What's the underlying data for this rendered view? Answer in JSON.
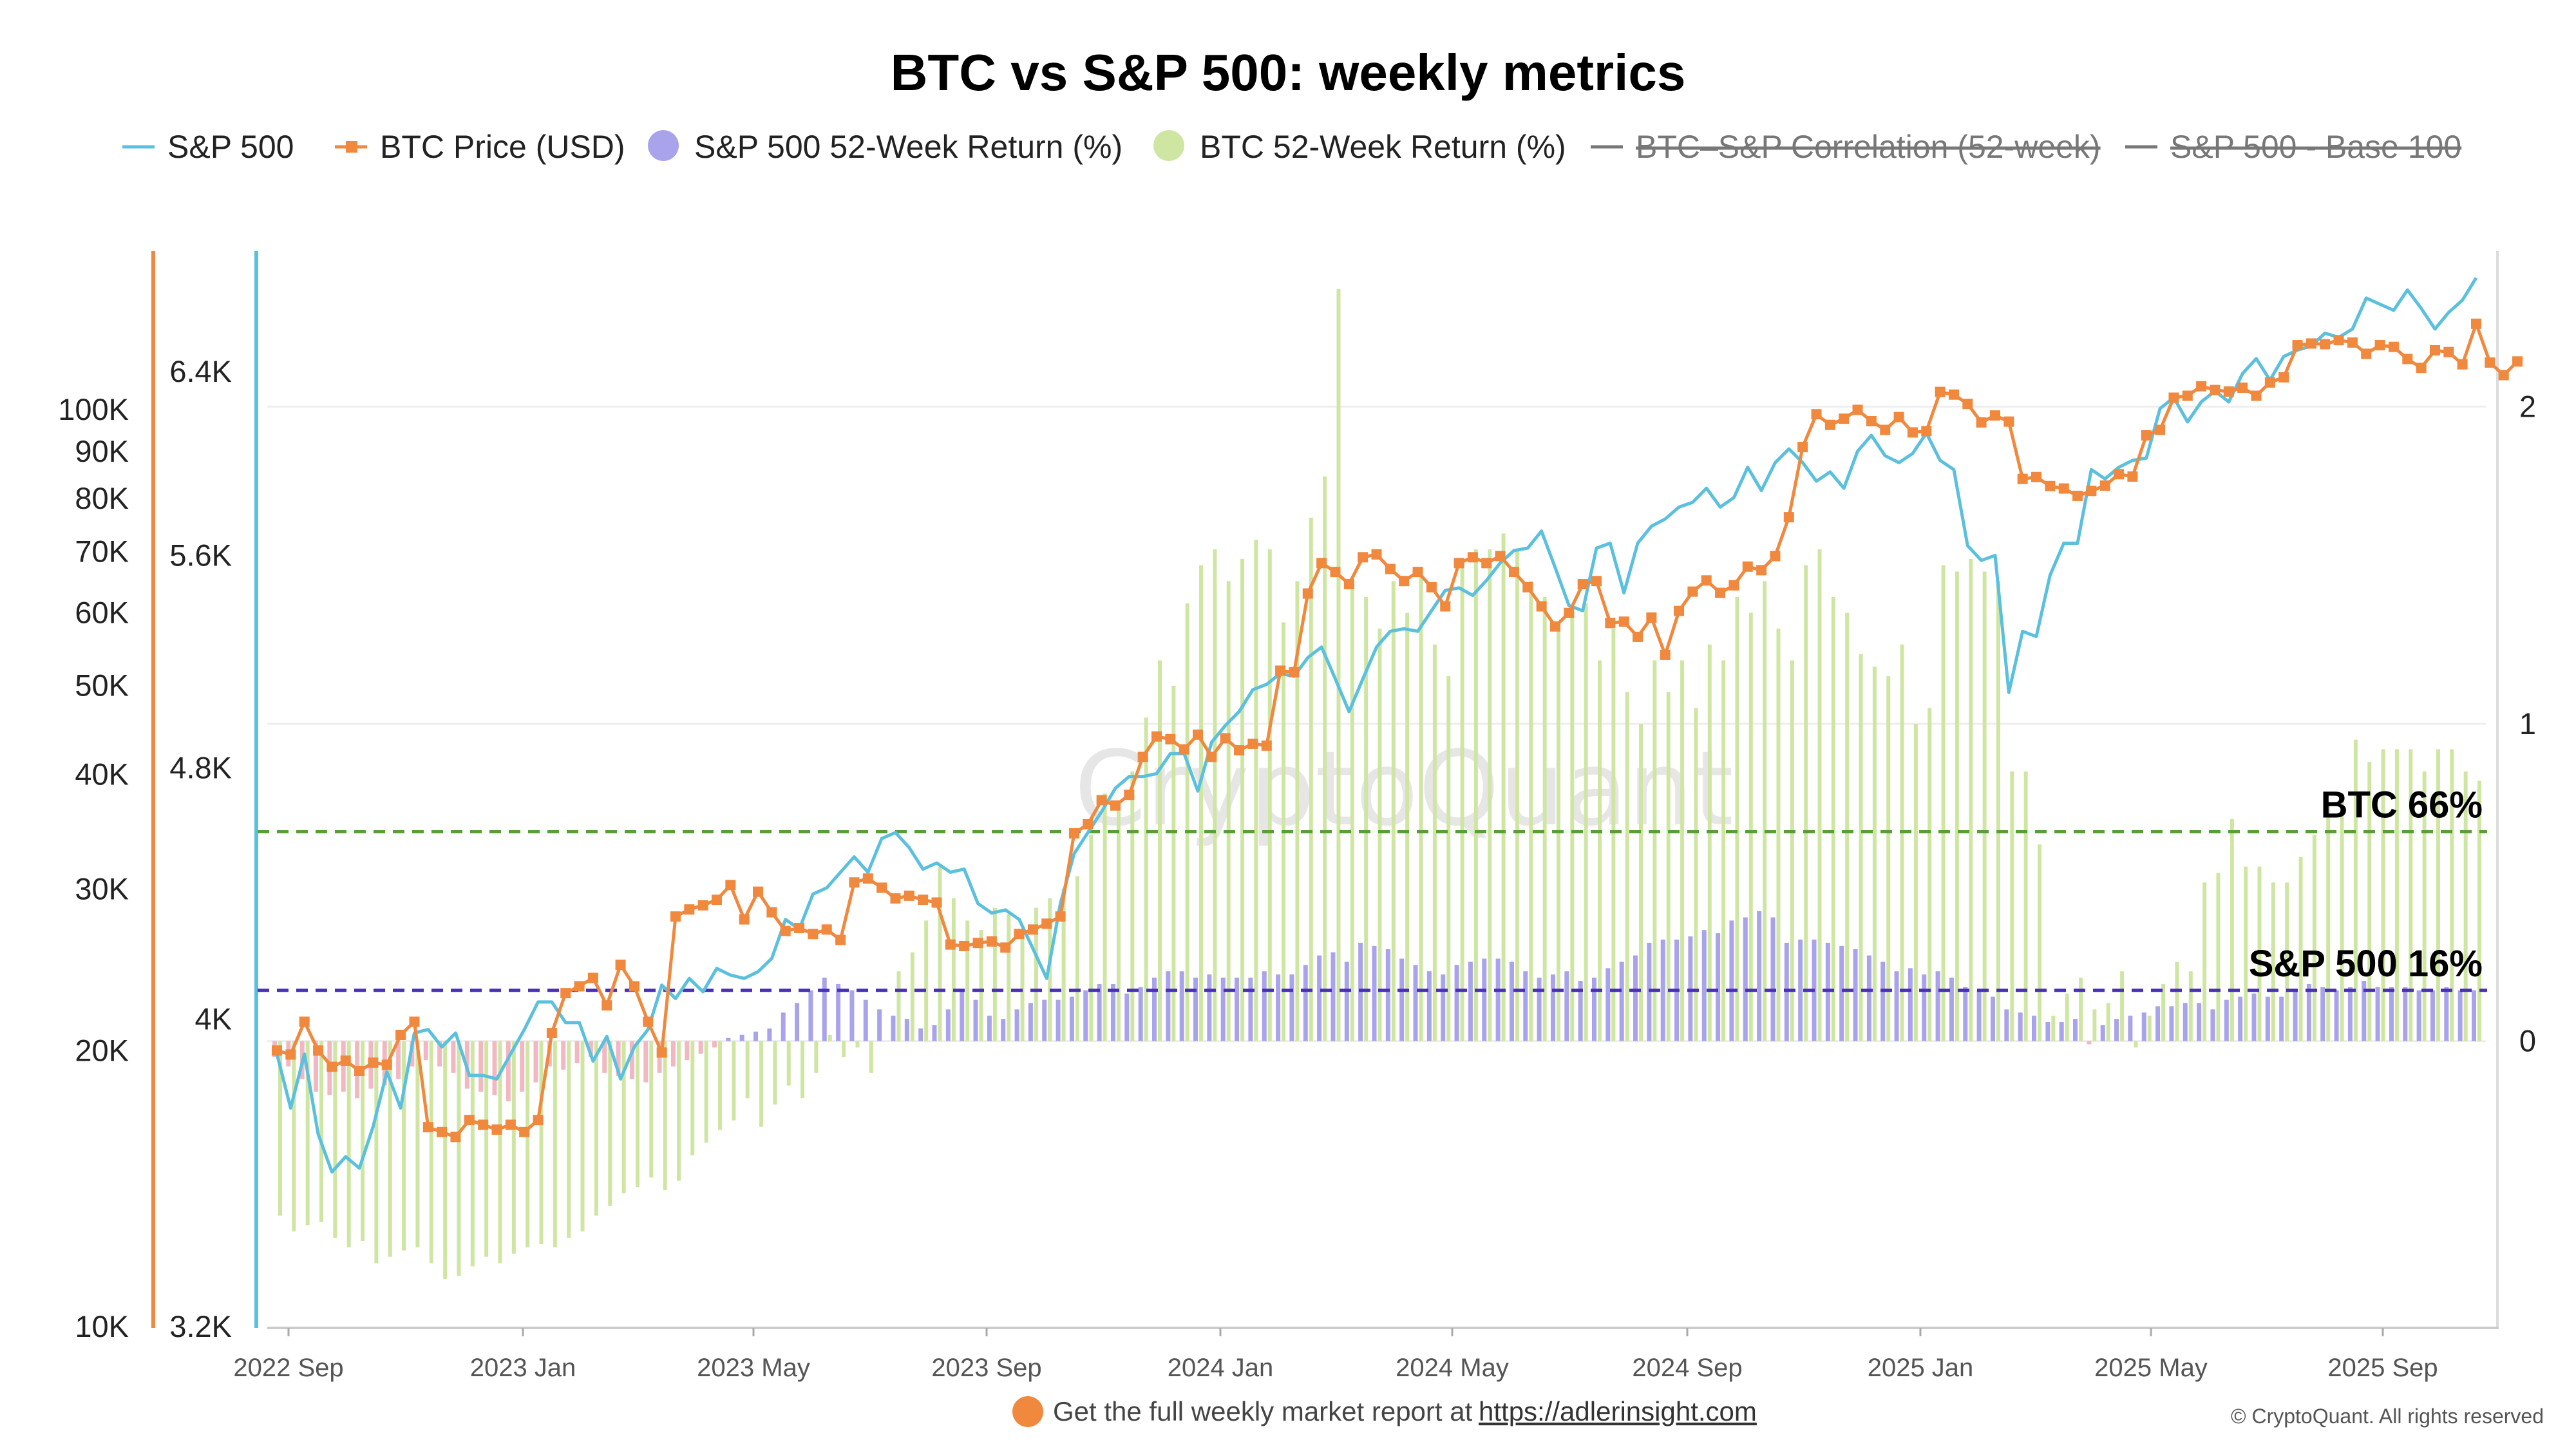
{
  "chart_data": {
    "type": "line",
    "title": "BTC vs S&P 500: weekly metrics",
    "legend": {
      "placement": "top",
      "items": [
        {
          "label": "S&P 500",
          "color": "#5bc0de",
          "marker": "line",
          "active": true
        },
        {
          "label": "BTC Price (USD)",
          "color": "#f0883e",
          "marker": "square-line",
          "active": true
        },
        {
          "label": "S&P 500 52-Week Return (%)",
          "color": "#a9a3ec",
          "marker": "dot",
          "active": true
        },
        {
          "label": "BTC 52-Week Return (%)",
          "color": "#cfe6a3",
          "marker": "dot",
          "active": true
        },
        {
          "label": "BTC–S&P Correlation (52-week)",
          "color": "#777777",
          "marker": "line",
          "active": false
        },
        {
          "label": "S&P 500 - Base 100",
          "color": "#777777",
          "marker": "line",
          "active": false
        }
      ]
    },
    "x_ticks": [
      "2022 Sep",
      "2023 Jan",
      "2023 May",
      "2023 Sep",
      "2024 Jan",
      "2024 May",
      "2024 Sep",
      "2025 Jan",
      "2025 May",
      "2025 Sep"
    ],
    "y_axes": {
      "btc_price": {
        "scale": "log",
        "ticks": [
          "100K",
          "90K",
          "80K",
          "70K",
          "60K",
          "50K",
          "40K",
          "30K",
          "20K",
          "10K"
        ],
        "tick_values": [
          100000,
          90000,
          80000,
          70000,
          60000,
          50000,
          40000,
          30000,
          20000,
          10000
        ],
        "range": [
          10000,
          150000
        ]
      },
      "sp500": {
        "scale": "log",
        "ticks": [
          "6.4K",
          "5.6K",
          "4.8K",
          "4K",
          "3.2K"
        ],
        "tick_values": [
          6400,
          5600,
          4800,
          4000,
          3200
        ],
        "range": [
          3200,
          7000
        ]
      },
      "returns_right": {
        "scale": "linear",
        "ticks": [
          "2",
          "1",
          "0"
        ],
        "tick_values": [
          2,
          1,
          0
        ],
        "range": [
          -0.9,
          2.5
        ]
      }
    },
    "grid": true,
    "series": [
      {
        "name": "S&P 500",
        "axis": "sp500",
        "values": [
          3900,
          3750,
          3900,
          3680,
          3580,
          3620,
          3590,
          3700,
          3850,
          3750,
          3960,
          3970,
          3920,
          3960,
          3840,
          3840,
          3830,
          3900,
          3970,
          4050,
          4050,
          3990,
          3990,
          3880,
          3950,
          3830,
          3920,
          3970,
          4100,
          4060,
          4120,
          4080,
          4150,
          4130,
          4120,
          4140,
          4180,
          4300,
          4270,
          4380,
          4400,
          4450,
          4500,
          4450,
          4560,
          4580,
          4530,
          4460,
          4480,
          4450,
          4460,
          4350,
          4320,
          4330,
          4300,
          4210,
          4120,
          4350,
          4510,
          4580,
          4650,
          4730,
          4770,
          4770,
          4780,
          4850,
          4850,
          4720,
          4890,
          4950,
          5000,
          5080,
          5100,
          5140,
          5130,
          5200,
          5240,
          5120,
          5000,
          5120,
          5240,
          5300,
          5310,
          5300,
          5380,
          5460,
          5470,
          5440,
          5500,
          5570,
          5620,
          5630,
          5700,
          5550,
          5400,
          5380,
          5630,
          5650,
          5450,
          5650,
          5720,
          5750,
          5800,
          5820,
          5880,
          5800,
          5840,
          5970,
          5870,
          5990,
          6050,
          5990,
          5910,
          5950,
          5880,
          6040,
          6110,
          6020,
          5990,
          6030,
          6120,
          6000,
          5960,
          5640,
          5580,
          5600,
          5070,
          5300,
          5280,
          5520,
          5650,
          5650,
          5960,
          5920,
          5970,
          6000,
          6010,
          6230,
          6280,
          6170,
          6260,
          6310,
          6260,
          6390,
          6460,
          6360,
          6470,
          6500,
          6520,
          6580,
          6560,
          6600,
          6750,
          6720,
          6690,
          6790,
          6700,
          6600,
          6680,
          6740,
          6850
        ]
      },
      {
        "name": "BTC Price (USD)",
        "axis": "btc_price",
        "values": [
          20000,
          19800,
          21500,
          20000,
          19200,
          19500,
          19000,
          19400,
          19300,
          20800,
          21500,
          16500,
          16300,
          16100,
          16800,
          16600,
          16400,
          16600,
          16300,
          16800,
          20900,
          23100,
          23500,
          24000,
          22400,
          24800,
          23500,
          21500,
          19900,
          28000,
          28500,
          28800,
          29200,
          30300,
          27800,
          29800,
          28300,
          27000,
          27200,
          26800,
          27100,
          26400,
          30500,
          30800,
          30100,
          29300,
          29500,
          29200,
          29000,
          26100,
          26000,
          26200,
          26300,
          25900,
          26800,
          27100,
          27500,
          28000,
          34500,
          35300,
          37500,
          37000,
          38000,
          41800,
          44000,
          43700,
          42600,
          44200,
          41800,
          43800,
          42500,
          43200,
          43000,
          51900,
          51700,
          63000,
          68000,
          66500,
          64500,
          69000,
          69500,
          67000,
          65000,
          66500,
          64000,
          61000,
          68000,
          69000,
          68000,
          69200,
          66500,
          64000,
          61000,
          58000,
          60000,
          64500,
          65000,
          58500,
          58700,
          56500,
          59300,
          54000,
          60300,
          63300,
          65100,
          63100,
          64300,
          67400,
          66800,
          69200,
          76300,
          91000,
          98800,
          96200,
          97700,
          99900,
          97100,
          95000,
          98100,
          94400,
          94700,
          104500,
          103800,
          101400,
          96800,
          98500,
          97000,
          84000,
          84400,
          82500,
          82000,
          80500,
          81500,
          82600,
          85000,
          84500,
          93700,
          95000,
          103000,
          103500,
          106000,
          105000,
          104600,
          105600,
          103500,
          107000,
          108400,
          117500,
          118000,
          117800,
          119000,
          118300,
          115000,
          117500,
          117000,
          113500,
          111000,
          116000,
          115500,
          112000,
          124000,
          112500,
          109000,
          112800
        ]
      },
      {
        "name": "S&P 500 52-Week Return (%)",
        "axis": "returns_right",
        "values": [
          -0.05,
          -0.08,
          -0.12,
          -0.16,
          -0.17,
          -0.16,
          -0.18,
          -0.15,
          -0.14,
          -0.12,
          -0.08,
          -0.06,
          -0.08,
          -0.1,
          -0.15,
          -0.16,
          -0.17,
          -0.19,
          -0.16,
          -0.13,
          -0.08,
          -0.09,
          -0.07,
          -0.05,
          -0.1,
          -0.11,
          -0.12,
          -0.13,
          -0.1,
          -0.08,
          -0.06,
          -0.04,
          -0.02,
          0.01,
          0.02,
          0.03,
          0.04,
          0.09,
          0.12,
          0.16,
          0.2,
          0.18,
          0.16,
          0.13,
          0.1,
          0.08,
          0.07,
          0.04,
          0.05,
          0.1,
          0.16,
          0.13,
          0.08,
          0.07,
          0.1,
          0.12,
          0.13,
          0.13,
          0.14,
          0.16,
          0.18,
          0.18,
          0.15,
          0.17,
          0.2,
          0.22,
          0.22,
          0.2,
          0.21,
          0.2,
          0.2,
          0.2,
          0.22,
          0.21,
          0.21,
          0.24,
          0.27,
          0.28,
          0.25,
          0.31,
          0.3,
          0.29,
          0.26,
          0.24,
          0.22,
          0.21,
          0.24,
          0.25,
          0.26,
          0.26,
          0.25,
          0.22,
          0.2,
          0.21,
          0.22,
          0.19,
          0.2,
          0.23,
          0.25,
          0.27,
          0.31,
          0.32,
          0.32,
          0.33,
          0.35,
          0.34,
          0.38,
          0.39,
          0.41,
          0.39,
          0.31,
          0.32,
          0.32,
          0.31,
          0.3,
          0.29,
          0.27,
          0.25,
          0.22,
          0.23,
          0.21,
          0.22,
          0.2,
          0.17,
          0.16,
          0.14,
          0.1,
          0.09,
          0.08,
          0.06,
          0.06,
          0.07,
          -0.01,
          0.05,
          0.07,
          0.08,
          0.09,
          0.11,
          0.11,
          0.12,
          0.12,
          0.1,
          0.13,
          0.14,
          0.15,
          0.14,
          0.14,
          0.16,
          0.18,
          0.17,
          0.16,
          0.17,
          0.19,
          0.17,
          0.17,
          0.17,
          0.16,
          0.16,
          0.17,
          0.16,
          0.16,
          0.17,
          0.16
        ]
      },
      {
        "name": "BTC 52-Week Return (%)",
        "axis": "returns_right",
        "values": [
          -0.55,
          -0.6,
          -0.58,
          -0.57,
          -0.62,
          -0.65,
          -0.63,
          -0.7,
          -0.68,
          -0.66,
          -0.65,
          -0.7,
          -0.75,
          -0.74,
          -0.71,
          -0.68,
          -0.7,
          -0.67,
          -0.65,
          -0.64,
          -0.65,
          -0.62,
          -0.6,
          -0.55,
          -0.52,
          -0.48,
          -0.46,
          -0.43,
          -0.47,
          -0.44,
          -0.36,
          -0.32,
          -0.28,
          -0.25,
          -0.18,
          -0.27,
          -0.2,
          -0.14,
          -0.18,
          -0.1,
          0.02,
          -0.05,
          -0.02,
          -0.1,
          0.0,
          0.22,
          0.28,
          0.38,
          0.55,
          0.45,
          0.38,
          0.35,
          0.42,
          0.4,
          0.35,
          0.42,
          0.45,
          0.48,
          0.52,
          0.65,
          0.78,
          0.75,
          0.85,
          1.02,
          1.2,
          1.12,
          1.38,
          1.5,
          1.55,
          1.45,
          1.52,
          1.58,
          1.55,
          1.32,
          1.45,
          1.65,
          1.78,
          2.37,
          1.45,
          1.4,
          1.3,
          1.45,
          1.35,
          1.48,
          1.25,
          1.15,
          1.5,
          1.55,
          1.55,
          1.6,
          1.55,
          1.45,
          1.4,
          1.3,
          1.35,
          1.38,
          1.2,
          1.3,
          1.1,
          1.0,
          1.2,
          1.1,
          1.2,
          1.05,
          1.25,
          1.2,
          1.4,
          1.35,
          1.45,
          1.3,
          1.2,
          1.5,
          1.55,
          1.4,
          1.35,
          1.22,
          1.18,
          1.15,
          1.25,
          1.0,
          1.05,
          1.5,
          1.48,
          1.52,
          1.48,
          1.45,
          0.85,
          0.85,
          0.62,
          0.08,
          0.15,
          0.2,
          0.1,
          0.12,
          0.22,
          -0.02,
          0.08,
          0.18,
          0.25,
          0.22,
          0.5,
          0.53,
          0.7,
          0.55,
          0.55,
          0.5,
          0.5,
          0.58,
          0.65,
          0.75,
          0.78,
          0.95,
          0.88,
          0.92,
          0.92,
          0.92,
          0.85,
          0.92,
          0.92,
          0.85,
          0.82,
          0.98,
          0.95,
          0.82,
          0.72,
          0.75,
          0.7,
          0.65
        ]
      }
    ],
    "reference_lines": [
      {
        "label": "BTC 66%",
        "axis": "returns_right",
        "value": 0.66,
        "color": "#5a9e3a",
        "style": "dashed"
      },
      {
        "label": "S&P 500 16%",
        "axis": "returns_right",
        "value": 0.16,
        "color": "#4a2fb8",
        "style": "dashed"
      }
    ]
  },
  "watermark": "CryptoQuant",
  "footer": {
    "text": "Get the full weekly market report at",
    "link": "https://adlerinsight.com",
    "copyright": "© CryptoQuant. All rights reserved"
  },
  "colors": {
    "sp500": "#5bc0de",
    "btc": "#f0883e",
    "sp_return": "#a9a3ec",
    "btc_return_pos": "#cfe6a3",
    "btc_return_neg": "#f2b8c2"
  }
}
